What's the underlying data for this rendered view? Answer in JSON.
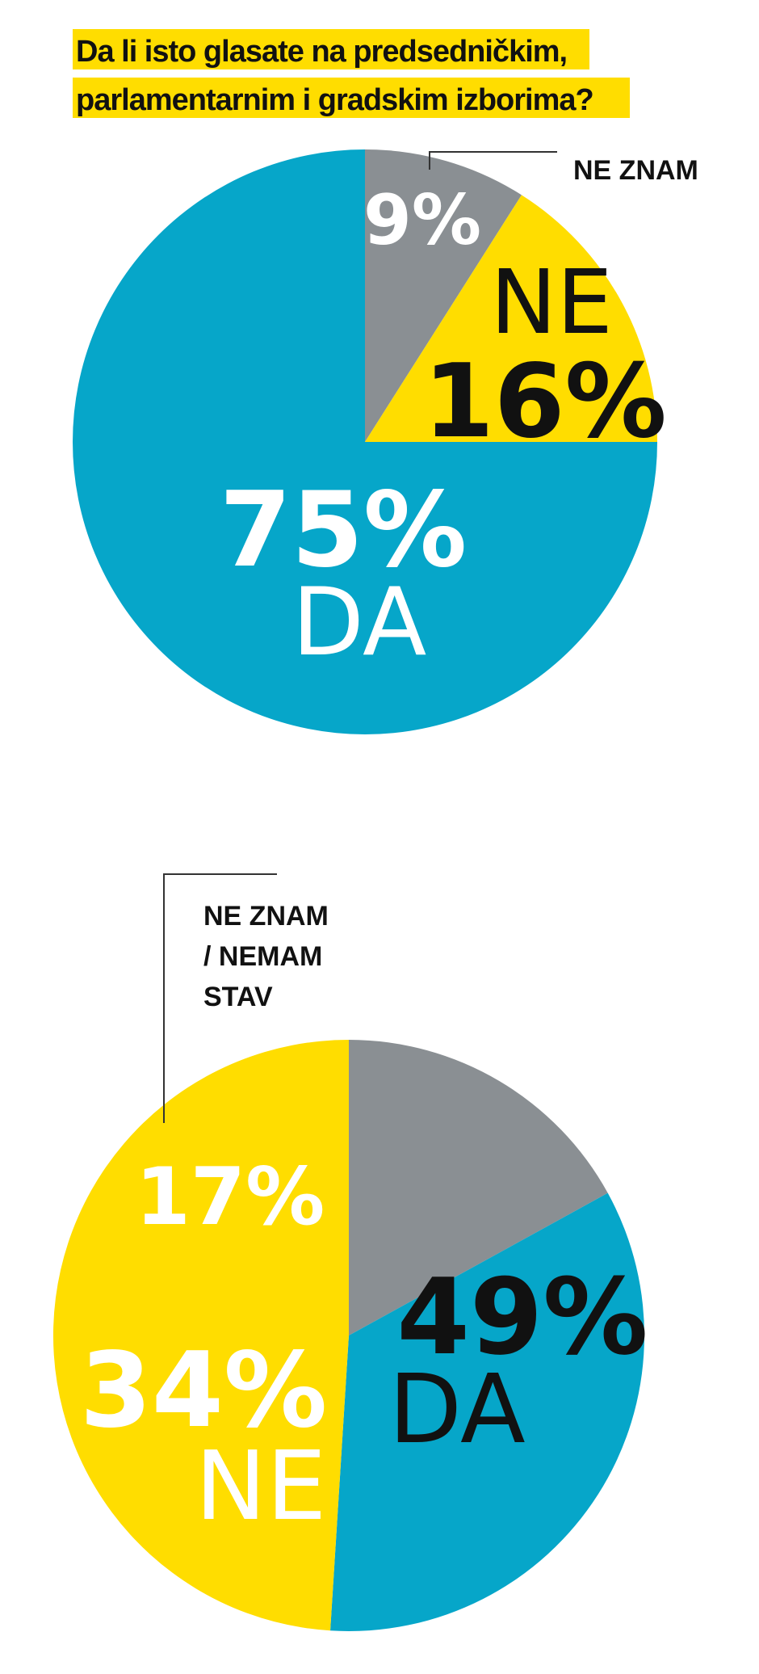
{
  "chart_data": [
    {
      "type": "pie",
      "title": "Da li isto glasate na predsedničkim, parlamentarnim i gradskim izborima?",
      "title_lines": [
        "Da li isto glasate na predsedničkim,",
        "parlamentarnim i gradskim izborima?"
      ],
      "slices": [
        {
          "label": "NE ZNAM",
          "value": 9,
          "value_label": "9%",
          "color": "#8a8f93"
        },
        {
          "label": "NE",
          "value": 16,
          "value_label": "16%",
          "color": "#ffdd00"
        },
        {
          "label": "DA",
          "value": 75,
          "value_label": "75%",
          "color": "#06a6c9"
        }
      ]
    },
    {
      "type": "pie",
      "slices": [
        {
          "label_lines": [
            "NE ZNAM",
            "/ NEMAM",
            "STAV"
          ],
          "label": "NE ZNAM / NEMAM STAV",
          "value": 17,
          "value_label": "17%",
          "color": "#8a8f93"
        },
        {
          "label": "NE",
          "value": 34,
          "value_label": "34%",
          "color": "#06a6c9"
        },
        {
          "label": "DA",
          "value": 49,
          "value_label": "49%",
          "color": "#ffdd00"
        }
      ]
    }
  ]
}
